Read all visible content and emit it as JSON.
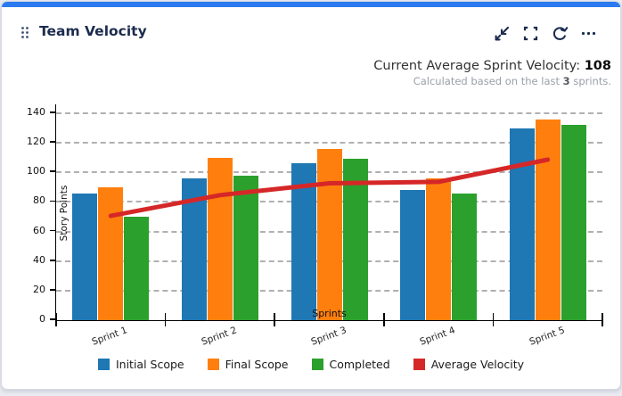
{
  "widget": {
    "title": "Team Velocity",
    "icons": {
      "drag_handle": "drag-dots",
      "collapse": "collapse-arrows",
      "fullscreen": "fullscreen-brackets",
      "refresh": "refresh-arrows",
      "more": "ellipsis"
    },
    "summary": {
      "label": "Current Average Sprint Velocity: ",
      "value": "108",
      "note_prefix": "Calculated based on the last ",
      "note_value": "3",
      "note_suffix": " sprints."
    }
  },
  "chart_data": {
    "type": "bar",
    "categories": [
      "Sprint 1",
      "Sprint 2",
      "Sprint 3",
      "Sprint 4",
      "Sprint 5"
    ],
    "series": [
      {
        "name": "Initial Scope",
        "type": "bar",
        "color": "#1f77b4",
        "values": [
          86,
          96,
          106,
          88,
          130
        ]
      },
      {
        "name": "Final Scope",
        "type": "bar",
        "color": "#ff7f0e",
        "values": [
          90,
          110,
          116,
          96,
          136
        ]
      },
      {
        "name": "Completed",
        "type": "bar",
        "color": "#2ca02c",
        "values": [
          70,
          98,
          109,
          86,
          132
        ]
      },
      {
        "name": "Average Velocity",
        "type": "line",
        "color": "#d62728",
        "values": [
          70,
          84,
          92,
          93,
          108
        ]
      }
    ],
    "xlabel": "Sprints",
    "ylabel": "Story Points",
    "ylim": [
      0,
      146
    ],
    "yticks": [
      0,
      20,
      40,
      60,
      80,
      100,
      120,
      140
    ],
    "grid": true,
    "grid_style": "dashed",
    "legend_position": "bottom"
  },
  "colors": {
    "accent_bar": "#2b7af0",
    "title_text": "#1c2b4e",
    "toolbar_icon": "#1d2d50",
    "card_border": "#d6d9e4",
    "gridline": "#b0b0b0",
    "axis": "#000000",
    "note_text": "#9aa0a8"
  }
}
